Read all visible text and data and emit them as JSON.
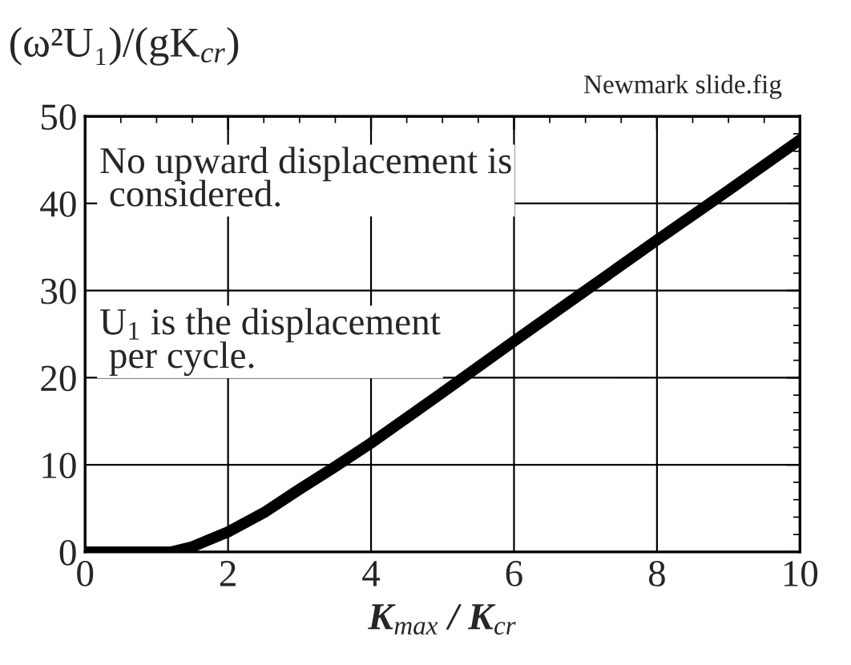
{
  "chart_data": {
    "type": "line",
    "x": [
      0,
      0.5,
      1,
      1.2,
      1.5,
      2,
      2.5,
      3,
      3.5,
      4,
      5,
      6,
      7,
      8,
      9,
      10
    ],
    "series": [
      {
        "color": "#000000",
        "values": [
          0,
          0,
          0,
          0,
          0.6,
          2.3,
          4.5,
          7.2,
          9.8,
          12.5,
          18.3,
          24.2,
          30,
          35.8,
          41.5,
          47.3
        ]
      }
    ],
    "xlim": [
      0,
      10
    ],
    "ylim": [
      0,
      50
    ],
    "xticks": [
      0,
      2,
      4,
      6,
      8,
      10
    ],
    "yticks": [
      0,
      10,
      20,
      30,
      40,
      50
    ],
    "xlabel": "K$_{max}$ / K$_{cr}$",
    "ylabel": "(ω²U₁)/(gK$_{cr}$)",
    "annotations": [
      "Newmark slide.fig",
      "No upward displacement is\n considered.",
      "U$_{1}$ is the displacement\n per cycle."
    ],
    "grid": true,
    "marker": "none",
    "line_style": "solid"
  }
}
